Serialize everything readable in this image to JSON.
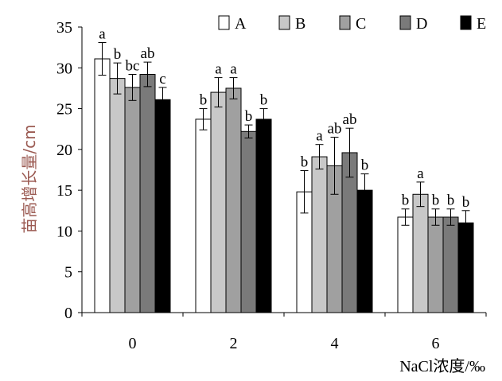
{
  "chart_data": {
    "type": "bar",
    "title": "",
    "ylabel": "苗高增长量/cm",
    "xlabel": "NaCl浓度/‰",
    "categories": [
      "0",
      "2",
      "4",
      "6"
    ],
    "ylim": [
      0,
      35
    ],
    "yticks": [
      0,
      5,
      10,
      15,
      20,
      25,
      30,
      35
    ],
    "legend_position": "top-right",
    "series": [
      {
        "name": "A",
        "color": "#ffffff",
        "values": [
          31.1,
          23.7,
          14.8,
          11.7
        ],
        "errors": [
          2.0,
          1.3,
          2.6,
          1.0
        ],
        "sig": [
          "a",
          "b",
          "b",
          "b"
        ]
      },
      {
        "name": "B",
        "color": "#c8c8c8",
        "values": [
          28.7,
          27.0,
          19.1,
          14.5
        ],
        "errors": [
          1.9,
          1.8,
          1.5,
          1.5
        ],
        "sig": [
          "b",
          "a",
          "a",
          "a"
        ]
      },
      {
        "name": "C",
        "color": "#a0a0a0",
        "values": [
          27.6,
          27.5,
          18.0,
          11.7
        ],
        "errors": [
          1.6,
          1.3,
          3.5,
          1.0
        ],
        "sig": [
          "bc",
          "a",
          "ab",
          "b"
        ]
      },
      {
        "name": "D",
        "color": "#7a7a7a",
        "values": [
          29.2,
          22.2,
          19.6,
          11.7
        ],
        "errors": [
          1.5,
          0.8,
          3.0,
          1.0
        ],
        "sig": [
          "ab",
          "b",
          "ab",
          "b"
        ]
      },
      {
        "name": "E",
        "color": "#000000",
        "values": [
          26.1,
          23.7,
          15.0,
          11.0
        ],
        "errors": [
          1.5,
          1.3,
          2.0,
          1.5
        ],
        "sig": [
          "c",
          "b",
          "b",
          "b"
        ]
      }
    ]
  }
}
